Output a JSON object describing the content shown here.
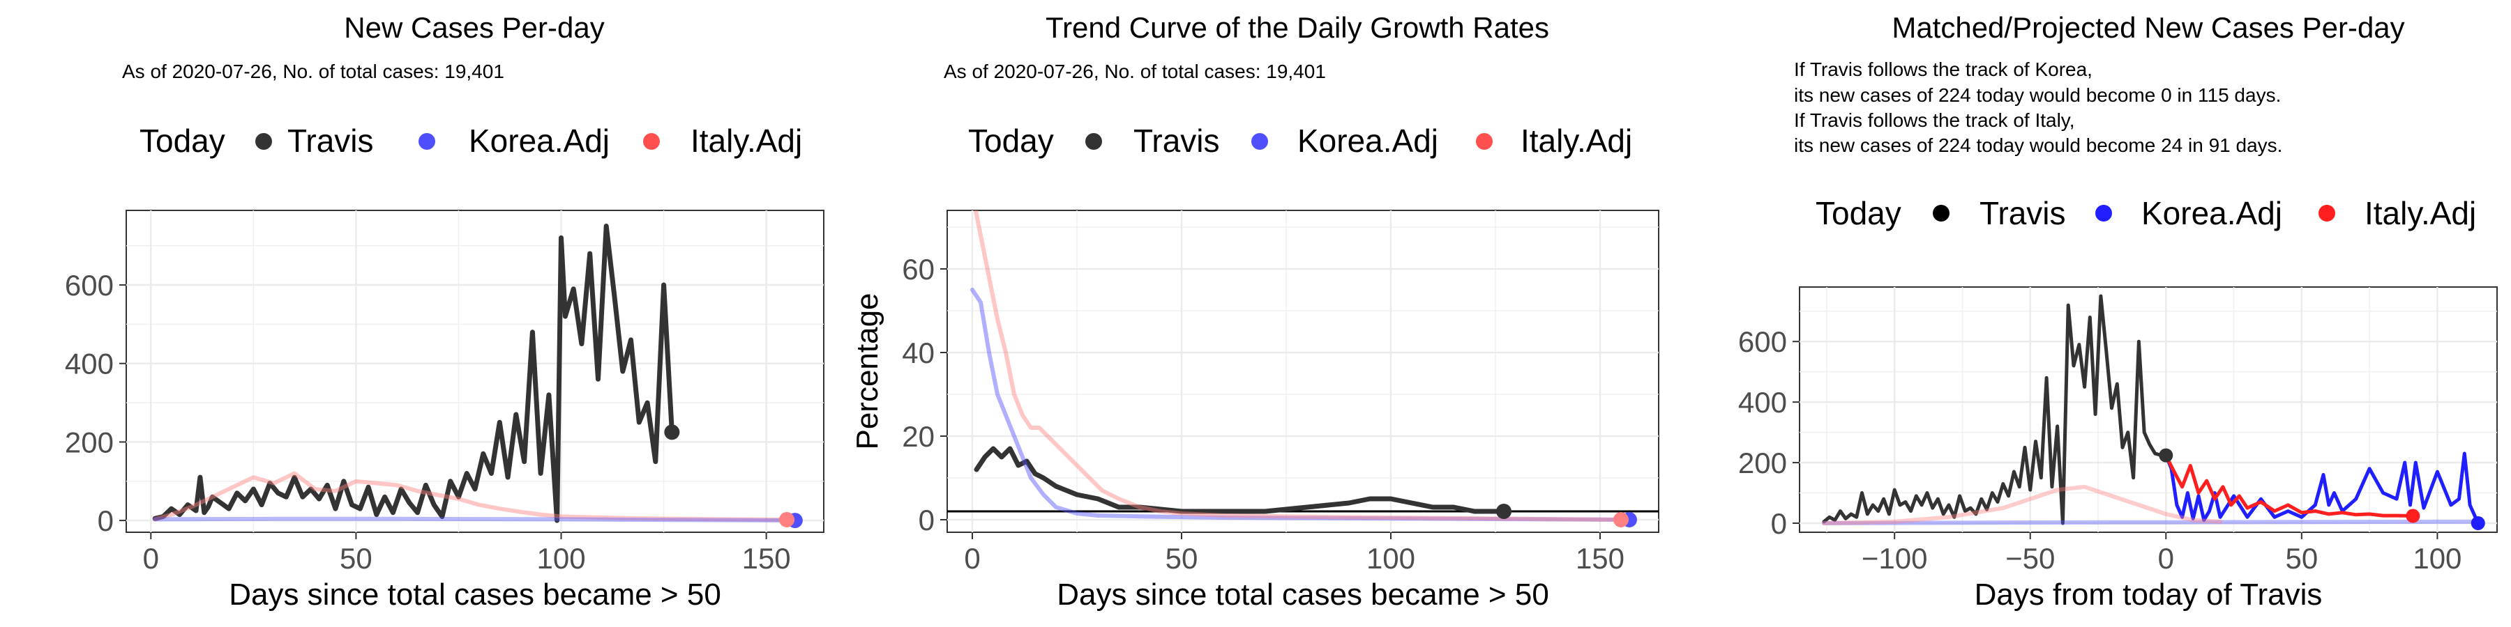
{
  "chart_data": [
    {
      "type": "line",
      "title": "New Cases Per-day",
      "subtitle": "As of 2020-07-26, No. of total cases: 19,401",
      "xlabel": "Days since total cases became > 50",
      "ylabel": "",
      "xlim": [
        -6,
        164
      ],
      "ylim": [
        -30,
        790
      ],
      "xticks": [
        0,
        50,
        100,
        150
      ],
      "yticks": [
        0,
        200,
        400,
        600
      ],
      "grid": true,
      "legend": {
        "title": "Today",
        "position": "top",
        "entries": [
          "Travis",
          "Korea.Adj",
          "Italy.Adj"
        ]
      },
      "series": [
        {
          "name": "Travis",
          "color": "#333333",
          "x": [
            1,
            3,
            5,
            7,
            9,
            11,
            12,
            13,
            14,
            15,
            17,
            19,
            21,
            23,
            25,
            27,
            29,
            31,
            33,
            35,
            37,
            39,
            41,
            43,
            45,
            47,
            49,
            51,
            53,
            55,
            57,
            59,
            61,
            63,
            65,
            67,
            69,
            71,
            73,
            75,
            77,
            79,
            81,
            83,
            85,
            87,
            89,
            91,
            93,
            95,
            97,
            99,
            100,
            101,
            103,
            105,
            107,
            109,
            111,
            113,
            115,
            117,
            119,
            121,
            123,
            125,
            127
          ],
          "y": [
            5,
            10,
            30,
            15,
            40,
            25,
            110,
            20,
            35,
            60,
            45,
            30,
            70,
            50,
            80,
            40,
            95,
            70,
            60,
            110,
            60,
            80,
            55,
            90,
            30,
            100,
            40,
            30,
            85,
            15,
            60,
            20,
            80,
            45,
            20,
            90,
            40,
            10,
            100,
            60,
            120,
            80,
            170,
            120,
            250,
            110,
            270,
            150,
            480,
            120,
            320,
            0,
            720,
            520,
            590,
            450,
            680,
            360,
            750,
            570,
            380,
            460,
            250,
            300,
            150,
            600,
            225
          ],
          "end_point": {
            "x": 127,
            "y": 225
          }
        },
        {
          "name": "Korea.Adj",
          "color": "#4f4fff",
          "x": [
            1,
            30,
            60,
            100,
            157
          ],
          "y": [
            3,
            4,
            4,
            3,
            0
          ],
          "end_point": {
            "x": 157,
            "y": 0
          }
        },
        {
          "name": "Italy.Adj",
          "color": "#ff8080",
          "x": [
            1,
            5,
            10,
            15,
            20,
            25,
            30,
            35,
            40,
            45,
            50,
            55,
            60,
            65,
            70,
            75,
            80,
            85,
            90,
            95,
            100,
            120,
            155
          ],
          "y": [
            3,
            15,
            35,
            60,
            85,
            110,
            95,
            120,
            80,
            75,
            100,
            95,
            90,
            75,
            65,
            55,
            40,
            30,
            22,
            15,
            10,
            5,
            2
          ],
          "end_point": {
            "x": 155,
            "y": 2
          }
        }
      ]
    },
    {
      "type": "line",
      "title": "Trend Curve of the Daily Growth Rates",
      "subtitle": "As of 2020-07-26, No. of total cases: 19,401",
      "xlabel": "Days since total cases became > 50",
      "ylabel": "Percentage",
      "xlim": [
        -6,
        164
      ],
      "ylim": [
        -3,
        74
      ],
      "xticks": [
        0,
        50,
        100,
        150
      ],
      "yticks": [
        0,
        20,
        40,
        60
      ],
      "hline": 2,
      "grid": true,
      "legend": {
        "title": "Today",
        "position": "top",
        "entries": [
          "Travis",
          "Korea.Adj",
          "Italy.Adj"
        ]
      },
      "series": [
        {
          "name": "Travis",
          "color": "#333333",
          "x": [
            1,
            3,
            5,
            7,
            9,
            11,
            13,
            15,
            17,
            20,
            25,
            30,
            35,
            40,
            50,
            60,
            70,
            80,
            90,
            95,
            100,
            105,
            110,
            115,
            120,
            125,
            127
          ],
          "y": [
            12,
            15,
            17,
            15,
            17,
            13,
            14,
            11,
            10,
            8,
            6,
            5,
            3,
            3,
            2,
            2,
            2,
            3,
            4,
            5,
            5,
            4,
            3,
            3,
            2,
            2,
            2
          ],
          "end_point": {
            "x": 127,
            "y": 2
          }
        },
        {
          "name": "Korea.Adj",
          "color": "#4f4fff",
          "x": [
            0,
            2,
            4,
            6,
            8,
            10,
            12,
            14,
            17,
            20,
            25,
            30,
            40,
            60,
            100,
            157
          ],
          "y": [
            55,
            52,
            40,
            30,
            25,
            20,
            15,
            10,
            6,
            3,
            1.5,
            1,
            0.8,
            0.5,
            0.3,
            0
          ],
          "end_point": {
            "x": 157,
            "y": 0
          }
        },
        {
          "name": "Italy.Adj",
          "color": "#ff8080",
          "x": [
            0,
            2,
            4,
            6,
            8,
            10,
            12,
            14,
            16,
            18,
            20,
            22,
            25,
            28,
            31,
            35,
            40,
            45,
            50,
            60,
            80,
            100,
            155
          ],
          "y": [
            78,
            68,
            58,
            48,
            40,
            30,
            25,
            22,
            22,
            20,
            18,
            16,
            13,
            10,
            7,
            5,
            3,
            2,
            1.5,
            1,
            0.7,
            0.5,
            0
          ],
          "end_point": {
            "x": 155,
            "y": 0
          }
        }
      ]
    },
    {
      "type": "line",
      "title": "Matched/Projected New Cases Per-day",
      "subtitle_lines": [
        "If Travis follows the track of Korea,",
        "its new cases of 224 today would become 0 in 115 days.",
        "If Travis follows the track of Italy,",
        "its new cases of 224 today would become 24 in 91 days."
      ],
      "xlabel": "Days from today of Travis",
      "ylabel": "",
      "xlim": [
        -135,
        122
      ],
      "ylim": [
        -30,
        780
      ],
      "xticks": [
        -100,
        -50,
        0,
        50,
        100
      ],
      "yticks": [
        0,
        200,
        400,
        600
      ],
      "grid": true,
      "legend": {
        "title": "Today",
        "position": "top",
        "entries": [
          "Travis",
          "Korea.Adj",
          "Italy.Adj"
        ]
      },
      "series": [
        {
          "name": "Travis",
          "color": "#333333",
          "x": [
            -126,
            -124,
            -122,
            -120,
            -118,
            -116,
            -114,
            -112,
            -110,
            -108,
            -106,
            -104,
            -102,
            -100,
            -98,
            -96,
            -94,
            -92,
            -90,
            -88,
            -86,
            -84,
            -82,
            -80,
            -78,
            -76,
            -74,
            -72,
            -70,
            -68,
            -66,
            -64,
            -62,
            -60,
            -58,
            -56,
            -54,
            -52,
            -50,
            -48,
            -46,
            -44,
            -42,
            -40,
            -38,
            -36,
            -34,
            -32,
            -30,
            -28,
            -26,
            -24,
            -22,
            -20,
            -18,
            -16,
            -14,
            -12,
            -10,
            -8,
            -6,
            -4,
            -2,
            0
          ],
          "y": [
            5,
            20,
            10,
            40,
            15,
            30,
            20,
            100,
            30,
            60,
            40,
            80,
            30,
            110,
            60,
            70,
            40,
            90,
            60,
            100,
            50,
            80,
            30,
            60,
            20,
            90,
            40,
            50,
            30,
            80,
            45,
            100,
            70,
            130,
            90,
            170,
            120,
            250,
            110,
            270,
            150,
            480,
            120,
            320,
            0,
            720,
            520,
            590,
            450,
            680,
            360,
            750,
            570,
            380,
            460,
            250,
            300,
            150,
            600,
            300,
            260,
            230,
            225,
            224
          ],
          "end_point": {
            "x": 0,
            "y": 224
          }
        },
        {
          "name": "Korea.Adj",
          "color": "#1f1fff",
          "x": [
            0,
            2,
            4,
            6,
            8,
            10,
            12,
            14,
            16,
            18,
            20,
            25,
            30,
            35,
            40,
            45,
            50,
            55,
            58,
            60,
            62,
            65,
            70,
            75,
            80,
            85,
            88,
            90,
            92,
            95,
            100,
            105,
            108,
            110,
            112,
            115
          ],
          "y": [
            224,
            180,
            60,
            20,
            100,
            15,
            90,
            10,
            40,
            100,
            20,
            90,
            20,
            80,
            20,
            40,
            20,
            60,
            160,
            60,
            100,
            40,
            80,
            180,
            100,
            80,
            200,
            60,
            200,
            50,
            170,
            60,
            80,
            230,
            60,
            0
          ],
          "end_point": {
            "x": 115,
            "y": 0
          }
        },
        {
          "name": "Italy.Adj",
          "color": "#ff1f1f",
          "x": [
            0,
            3,
            6,
            9,
            12,
            15,
            18,
            21,
            24,
            27,
            30,
            35,
            40,
            45,
            50,
            55,
            60,
            65,
            70,
            75,
            80,
            85,
            91
          ],
          "y": [
            224,
            170,
            120,
            190,
            100,
            140,
            80,
            120,
            60,
            90,
            50,
            70,
            40,
            60,
            35,
            40,
            30,
            35,
            28,
            30,
            25,
            25,
            24
          ],
          "end_point": {
            "x": 91,
            "y": 24
          }
        },
        {
          "name": "Korea.Adj (matched)",
          "color": "#4f4fff",
          "x": [
            -126,
            -60,
            -20,
            0,
            50,
            115
          ],
          "y": [
            0,
            2,
            3,
            3,
            4,
            5
          ]
        },
        {
          "name": "Italy.Adj (matched)",
          "color": "#ff8080",
          "x": [
            -126,
            -100,
            -80,
            -60,
            -50,
            -40,
            -30,
            -20,
            -10,
            0,
            10,
            20
          ],
          "y": [
            0,
            5,
            20,
            50,
            80,
            110,
            120,
            90,
            60,
            30,
            10,
            5
          ]
        }
      ]
    }
  ]
}
